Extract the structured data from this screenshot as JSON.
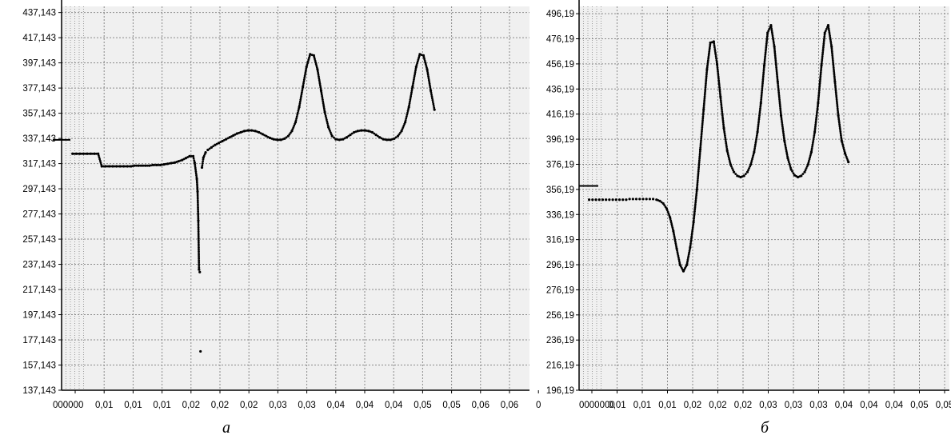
{
  "chart_data": [
    {
      "type": "scatter",
      "caption": "а",
      "y_tick_labels": [
        "437,143",
        "417,143",
        "397,143",
        "377,143",
        "357,143",
        "337,143",
        "317,143",
        "297,143",
        "277,143",
        "257,143",
        "237,143",
        "217,143",
        "197,143",
        "177,143",
        "157,143",
        "137,143"
      ],
      "x_tick_labels": [
        "000000",
        "0,01",
        "0,01",
        "0,01",
        "0,02",
        "0,02",
        "0,02",
        "0,03",
        "0,03",
        "0,04",
        "0,04",
        "0,04",
        "0,05",
        "0,05",
        "0,06",
        "0,06",
        "0"
      ],
      "ylim": [
        137.143,
        442
      ],
      "xlim": [
        0,
        0.064
      ],
      "grid": true,
      "marker_level": 336,
      "series": [
        {
          "points": [
            [
              0.0015,
              325
            ],
            [
              0.002,
              325
            ],
            [
              0.0025,
              325
            ],
            [
              0.003,
              325
            ],
            [
              0.0035,
              325
            ],
            [
              0.004,
              325
            ],
            [
              0.0045,
              325
            ],
            [
              0.005,
              325
            ],
            [
              0.0055,
              315
            ],
            [
              0.006,
              315
            ],
            [
              0.0065,
              315
            ],
            [
              0.007,
              315
            ],
            [
              0.0075,
              315
            ],
            [
              0.008,
              315
            ],
            [
              0.0085,
              315
            ],
            [
              0.009,
              315
            ],
            [
              0.0095,
              315
            ],
            [
              0.01,
              315.5
            ],
            [
              0.0105,
              315.5
            ],
            [
              0.011,
              315.5
            ],
            [
              0.0115,
              315.5
            ],
            [
              0.012,
              315.5
            ],
            [
              0.0125,
              316
            ],
            [
              0.013,
              316
            ],
            [
              0.0135,
              316
            ],
            [
              0.014,
              316.5
            ],
            [
              0.0145,
              317
            ],
            [
              0.015,
              317.5
            ],
            [
              0.0155,
              318
            ],
            [
              0.016,
              319
            ],
            [
              0.0165,
              320
            ],
            [
              0.017,
              321.5
            ],
            [
              0.0175,
              323
            ],
            [
              0.018,
              323
            ],
            [
              0.0182,
              318
            ],
            [
              0.0185,
              305
            ],
            [
              0.0186,
              295
            ],
            [
              0.0187,
              272
            ],
            [
              0.0188,
              233
            ],
            [
              0.0189,
              231
            ],
            [
              0.019,
              168
            ],
            [
              0.0192,
              314
            ],
            [
              0.0194,
              322
            ],
            [
              0.0197,
              326
            ],
            [
              0.02,
              328
            ],
            [
              0.0205,
              330
            ],
            [
              0.021,
              332
            ],
            [
              0.0215,
              333.5
            ],
            [
              0.022,
              335
            ],
            [
              0.0225,
              336.5
            ],
            [
              0.023,
              338
            ],
            [
              0.0235,
              339.5
            ],
            [
              0.024,
              341
            ],
            [
              0.0245,
              342
            ],
            [
              0.025,
              343
            ],
            [
              0.0255,
              343.5
            ],
            [
              0.026,
              343.5
            ],
            [
              0.0265,
              343
            ],
            [
              0.027,
              342
            ],
            [
              0.0275,
              340.5
            ],
            [
              0.028,
              339
            ],
            [
              0.0285,
              337.5
            ],
            [
              0.029,
              336.5
            ],
            [
              0.0295,
              336
            ],
            [
              0.03,
              336
            ],
            [
              0.0305,
              337
            ],
            [
              0.031,
              339
            ],
            [
              0.0315,
              343
            ],
            [
              0.032,
              350
            ],
            [
              0.0325,
              362
            ],
            [
              0.033,
              378
            ],
            [
              0.0335,
              394
            ],
            [
              0.034,
              404
            ],
            [
              0.0345,
              403
            ],
            [
              0.035,
              392
            ],
            [
              0.0355,
              375
            ],
            [
              0.036,
              358
            ],
            [
              0.0365,
              346
            ],
            [
              0.037,
              339
            ],
            [
              0.0375,
              336.5
            ],
            [
              0.038,
              336
            ],
            [
              0.0385,
              336.5
            ],
            [
              0.039,
              338
            ],
            [
              0.0395,
              340
            ],
            [
              0.04,
              342
            ],
            [
              0.0405,
              343
            ],
            [
              0.041,
              343.5
            ],
            [
              0.0415,
              343.5
            ],
            [
              0.042,
              343
            ],
            [
              0.0425,
              342
            ],
            [
              0.043,
              340
            ],
            [
              0.0435,
              338
            ],
            [
              0.044,
              336.5
            ],
            [
              0.0445,
              336
            ],
            [
              0.045,
              336
            ],
            [
              0.0455,
              337
            ],
            [
              0.046,
              339
            ],
            [
              0.0465,
              343
            ],
            [
              0.047,
              350
            ],
            [
              0.0475,
              362
            ],
            [
              0.048,
              378
            ],
            [
              0.0485,
              394
            ],
            [
              0.049,
              404
            ],
            [
              0.0495,
              403
            ],
            [
              0.05,
              392
            ],
            [
              0.0505,
              375
            ],
            [
              0.051,
              360
            ]
          ]
        }
      ]
    },
    {
      "type": "scatter",
      "caption": "б",
      "y_tick_labels": [
        "496,19",
        "476,19",
        "456,19",
        "436,19",
        "416,19",
        "396,19",
        "376,19",
        "356,19",
        "336,19",
        "316,19",
        "296,19",
        "276,19",
        "256,19",
        "236,19",
        "216,19",
        "196,19"
      ],
      "x_tick_labels": [
        "0000000",
        "0,01",
        "0,01",
        "0,01",
        "0,02",
        "0,02",
        "0,02",
        "0,03",
        "0,03",
        "0,03",
        "0,04",
        "0,04",
        "0,04",
        "0,05",
        "0,05"
      ],
      "ylim": [
        196.19,
        502
      ],
      "xlim": [
        0,
        0.055
      ],
      "grid": true,
      "marker_level": 359,
      "series": [
        {
          "points": [
            [
              0.0015,
              348
            ],
            [
              0.002,
              348
            ],
            [
              0.0025,
              348
            ],
            [
              0.003,
              348
            ],
            [
              0.0035,
              348
            ],
            [
              0.004,
              348
            ],
            [
              0.0045,
              348
            ],
            [
              0.005,
              348
            ],
            [
              0.0055,
              348
            ],
            [
              0.006,
              348
            ],
            [
              0.0065,
              348
            ],
            [
              0.007,
              348
            ],
            [
              0.0075,
              348.5
            ],
            [
              0.008,
              348.5
            ],
            [
              0.0085,
              348.5
            ],
            [
              0.009,
              348.5
            ],
            [
              0.0095,
              348.5
            ],
            [
              0.01,
              348.5
            ],
            [
              0.0105,
              348.5
            ],
            [
              0.011,
              348.5
            ],
            [
              0.0115,
              348
            ],
            [
              0.012,
              347
            ],
            [
              0.0125,
              345
            ],
            [
              0.013,
              341
            ],
            [
              0.0135,
              334
            ],
            [
              0.014,
              323
            ],
            [
              0.0145,
              309
            ],
            [
              0.015,
              296
            ],
            [
              0.0155,
              291
            ],
            [
              0.016,
              296
            ],
            [
              0.0165,
              310
            ],
            [
              0.017,
              330
            ],
            [
              0.0175,
              356
            ],
            [
              0.018,
              388
            ],
            [
              0.0185,
              420
            ],
            [
              0.019,
              452
            ],
            [
              0.0195,
              473
            ],
            [
              0.02,
              474
            ],
            [
              0.0205,
              456
            ],
            [
              0.021,
              430
            ],
            [
              0.0215,
              405
            ],
            [
              0.022,
              387
            ],
            [
              0.0225,
              376
            ],
            [
              0.023,
              370
            ],
            [
              0.0235,
              367
            ],
            [
              0.024,
              366
            ],
            [
              0.0245,
              367
            ],
            [
              0.025,
              370
            ],
            [
              0.0255,
              376
            ],
            [
              0.026,
              386
            ],
            [
              0.0265,
              402
            ],
            [
              0.027,
              425
            ],
            [
              0.0275,
              455
            ],
            [
              0.028,
              481
            ],
            [
              0.0285,
              487
            ],
            [
              0.029,
              470
            ],
            [
              0.0295,
              442
            ],
            [
              0.03,
              415
            ],
            [
              0.0305,
              395
            ],
            [
              0.031,
              381
            ],
            [
              0.0315,
              372
            ],
            [
              0.032,
              367.5
            ],
            [
              0.0325,
              366
            ],
            [
              0.033,
              367
            ],
            [
              0.0335,
              370
            ],
            [
              0.034,
              376
            ],
            [
              0.0345,
              386
            ],
            [
              0.035,
              402
            ],
            [
              0.0355,
              425
            ],
            [
              0.036,
              455
            ],
            [
              0.0365,
              481
            ],
            [
              0.037,
              487
            ],
            [
              0.0375,
              470
            ],
            [
              0.038,
              442
            ],
            [
              0.0385,
              415
            ],
            [
              0.039,
              395
            ],
            [
              0.0395,
              385
            ],
            [
              0.04,
              378
            ]
          ]
        }
      ]
    }
  ]
}
